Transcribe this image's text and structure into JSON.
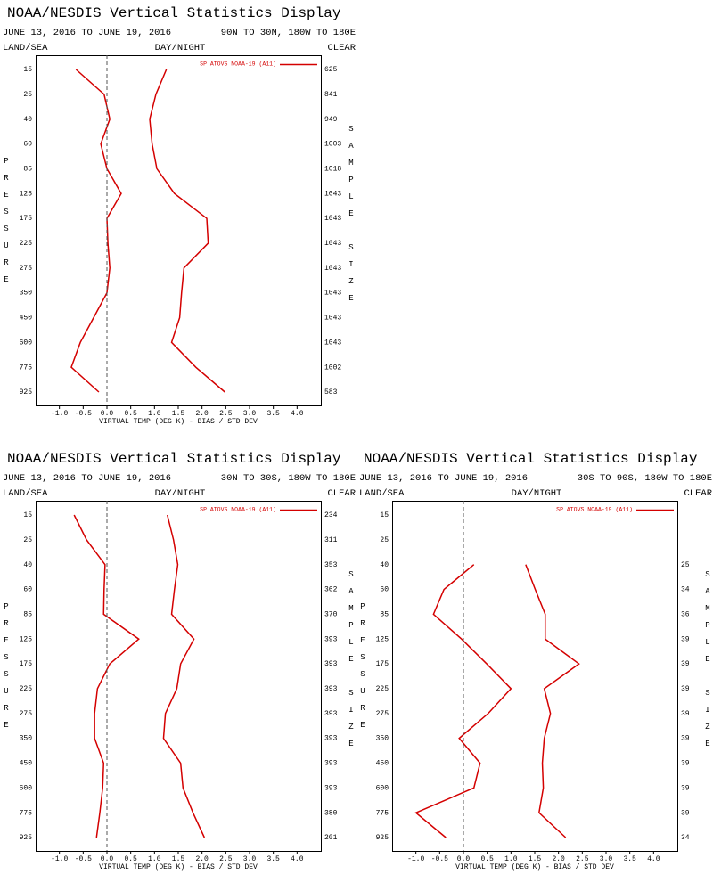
{
  "chart_data": [
    {
      "type": "line",
      "title": "NOAA/NESDIS Vertical Statistics Display",
      "date_range": "JUNE 13, 2016 TO JUNE 19, 2016",
      "region": "90N TO 30N, 180W TO 180E",
      "land_sea": "LAND/SEA",
      "day_night": "DAY/NIGHT",
      "clear": "CLEAR",
      "y_label": "PRESSURE",
      "y2_label": "SAMPLE SIZE",
      "x_label": "VIRTUAL TEMP (DEG K) - BIAS / STD DEV",
      "categories": [
        "15",
        "25",
        "40",
        "60",
        "85",
        "125",
        "175",
        "225",
        "275",
        "350",
        "450",
        "600",
        "775",
        "925"
      ],
      "series": [
        {
          "name": "SP ATOVS NOAA-19 (A11)",
          "color": "#d40000",
          "values": [
            -0.65,
            -0.06,
            0.06,
            -0.13,
            0.0,
            0.3,
            0.0,
            0.02,
            0.06,
            0.0,
            -0.28,
            -0.56,
            -0.75,
            -0.17
          ],
          "std_dev": [
            1.25,
            1.03,
            0.9,
            0.95,
            1.05,
            1.42,
            2.1,
            2.13,
            1.62,
            1.57,
            1.53,
            1.36,
            1.87,
            2.48
          ]
        }
      ],
      "sample_size": [
        625,
        841,
        949,
        1003,
        1018,
        1043,
        1043,
        1043,
        1043,
        1043,
        1043,
        1043,
        1002,
        583
      ],
      "xlim": [
        -1.5,
        4.5
      ],
      "xticks": [
        {
          "value": -1,
          "label": "-1.0"
        },
        -0.5,
        {
          "value": 0,
          "label": "0.0"
        },
        0.5,
        {
          "value": 1,
          "label": "1.0"
        },
        1.5,
        {
          "value": 2,
          "label": "2.0"
        },
        2.5,
        {
          "value": 3,
          "label": "3.0"
        },
        3.5,
        {
          "value": 4,
          "label": "4.0"
        }
      ]
    },
    {
      "type": "line",
      "title": "NOAA/NESDIS Vertical Statistics Display",
      "date_range": "JUNE 13, 2016 TO JUNE 19, 2016",
      "region": "30N TO 30S, 180W TO 180E",
      "land_sea": "LAND/SEA",
      "day_night": "DAY/NIGHT",
      "clear": "CLEAR",
      "y_label": "PRESSURE",
      "y2_label": "SAMPLE SIZE",
      "x_label": "VIRTUAL TEMP (DEG K) - BIAS / STD DEV",
      "categories": [
        "15",
        "25",
        "40",
        "60",
        "85",
        "125",
        "175",
        "225",
        "275",
        "350",
        "450",
        "600",
        "775",
        "925"
      ],
      "series": [
        {
          "name": "SP ATOVS NOAA-19 (A11)",
          "color": "#d40000",
          "values": [
            -0.69,
            -0.43,
            -0.04,
            -0.06,
            -0.07,
            0.67,
            0.06,
            -0.2,
            -0.26,
            -0.26,
            -0.07,
            -0.09,
            -0.15,
            -0.22
          ],
          "std_dev": [
            1.27,
            1.4,
            1.49,
            1.42,
            1.36,
            1.83,
            1.55,
            1.47,
            1.23,
            1.19,
            1.55,
            1.6,
            1.81,
            2.05
          ]
        }
      ],
      "sample_size": [
        234,
        311,
        353,
        362,
        370,
        393,
        393,
        393,
        393,
        393,
        393,
        393,
        380,
        201
      ],
      "xlim": [
        -1.5,
        4.5
      ],
      "xticks": [
        {
          "value": -1,
          "label": "-1.0"
        },
        -0.5,
        {
          "value": 0,
          "label": "0.0"
        },
        0.5,
        {
          "value": 1,
          "label": "1.0"
        },
        1.5,
        {
          "value": 2,
          "label": "2.0"
        },
        2.5,
        {
          "value": 3,
          "label": "3.0"
        },
        3.5,
        {
          "value": 4,
          "label": "4.0"
        }
      ]
    },
    {
      "type": "line",
      "title": "NOAA/NESDIS Vertical Statistics Display",
      "date_range": "JUNE 13, 2016 TO JUNE 19, 2016",
      "region": "30S TO 90S, 180W TO 180E",
      "land_sea": "LAND/SEA",
      "day_night": "DAY/NIGHT",
      "clear": "CLEAR",
      "y_label": "PRESSURE",
      "y2_label": "SAMPLE SIZE",
      "x_label": "VIRTUAL TEMP (DEG K) - BIAS / STD DEV",
      "categories": [
        "15",
        "25",
        "40",
        "60",
        "85",
        "125",
        "175",
        "225",
        "275",
        "350",
        "450",
        "600",
        "775",
        "925"
      ],
      "series": [
        {
          "name": "SP ATOVS NOAA-19 (A11)",
          "color": "#d40000",
          "values": [
            null,
            null,
            0.22,
            -0.41,
            -0.63,
            -0.04,
            0.49,
            1.0,
            0.52,
            -0.09,
            0.35,
            0.22,
            -1.0,
            -0.37
          ],
          "std_dev": [
            null,
            null,
            1.31,
            1.51,
            1.72,
            1.72,
            2.43,
            1.7,
            1.83,
            1.7,
            1.66,
            1.68,
            1.59,
            2.15
          ]
        }
      ],
      "sample_size": [
        null,
        null,
        25,
        34,
        36,
        39,
        39,
        39,
        39,
        39,
        39,
        39,
        39,
        34
      ],
      "xlim": [
        -1.5,
        4.5
      ],
      "xticks": [
        {
          "value": -1,
          "label": "-1.0"
        },
        -0.5,
        {
          "value": 0,
          "label": "0.0"
        },
        0.5,
        {
          "value": 1,
          "label": "1.0"
        },
        1.5,
        {
          "value": 2,
          "label": "2.0"
        },
        2.5,
        {
          "value": 3,
          "label": "3.0"
        },
        3.5,
        {
          "value": 4,
          "label": "4.0"
        }
      ]
    }
  ]
}
